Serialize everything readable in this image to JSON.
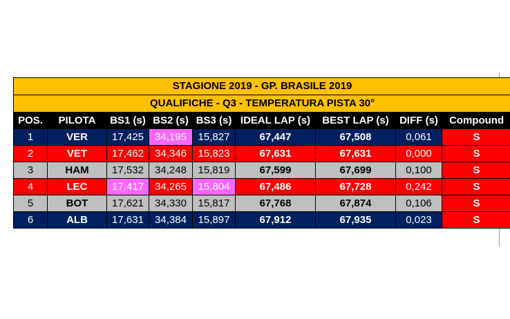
{
  "title": "STAGIONE 2019 - GP. BRASILE 2019",
  "subtitle": "QUALIFICHE - Q3 - TEMPERATURA PISTA 30°",
  "headers": [
    "POS.",
    "PILOTA",
    "BS1 (s)",
    "BS2 (s)",
    "BS3 (s)",
    "IDEAL LAP (s)",
    "BEST LAP (s)",
    "DIFF (s)",
    "Compound"
  ],
  "colors": {
    "band": "#ffc000",
    "header": "#000000",
    "row_blue": "#002060",
    "row_red": "#ff0000",
    "row_grey": "#bfbfbf",
    "highlight": "#ff66ff",
    "compound": "#ff0000"
  },
  "rows": [
    {
      "pos": "1",
      "pilot": "VER",
      "bs1": "17,425",
      "bs2": "34,195",
      "bs3": "15,827",
      "ideal": "67,447",
      "best": "67,508",
      "diff": "0,061",
      "compound": "S",
      "theme": "blue",
      "highlight": [
        "bs2"
      ]
    },
    {
      "pos": "2",
      "pilot": "VET",
      "bs1": "17,462",
      "bs2": "34,346",
      "bs3": "15,823",
      "ideal": "67,631",
      "best": "67,631",
      "diff": "0,000",
      "compound": "S",
      "theme": "red",
      "highlight": []
    },
    {
      "pos": "3",
      "pilot": "HAM",
      "bs1": "17,532",
      "bs2": "34,248",
      "bs3": "15,819",
      "ideal": "67,599",
      "best": "67,699",
      "diff": "0,100",
      "compound": "S",
      "theme": "grey",
      "highlight": []
    },
    {
      "pos": "4",
      "pilot": "LEC",
      "bs1": "17,417",
      "bs2": "34,265",
      "bs3": "15,804",
      "ideal": "67,486",
      "best": "67,728",
      "diff": "0,242",
      "compound": "S",
      "theme": "red",
      "highlight": [
        "bs1",
        "bs3"
      ]
    },
    {
      "pos": "5",
      "pilot": "BOT",
      "bs1": "17,621",
      "bs2": "34,330",
      "bs3": "15,817",
      "ideal": "67,768",
      "best": "67,874",
      "diff": "0,106",
      "compound": "S",
      "theme": "grey",
      "highlight": []
    },
    {
      "pos": "6",
      "pilot": "ALB",
      "bs1": "17,631",
      "bs2": "34,384",
      "bs3": "15,897",
      "ideal": "67,912",
      "best": "67,935",
      "diff": "0,023",
      "compound": "S",
      "theme": "blue",
      "highlight": []
    }
  ]
}
